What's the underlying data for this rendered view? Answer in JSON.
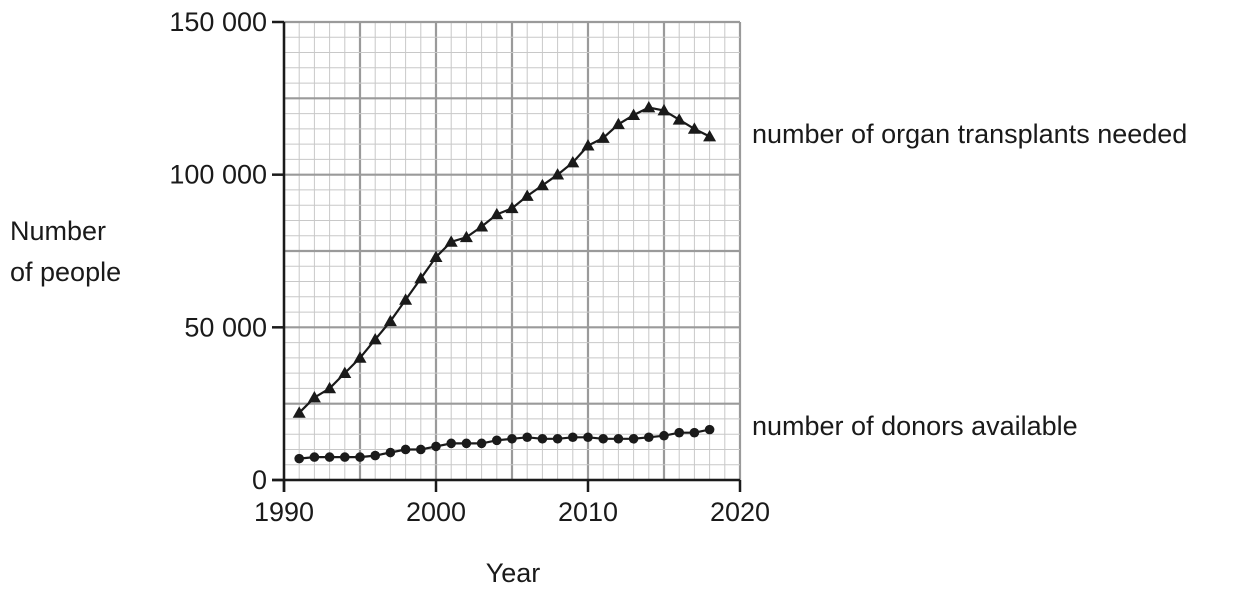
{
  "chart_data": {
    "type": "line",
    "title": "",
    "xlabel": "Year",
    "ylabel": [
      "Number",
      "of people"
    ],
    "xlim": [
      1990,
      2020
    ],
    "ylim": [
      0,
      150000
    ],
    "x_ticks": [
      1990,
      2000,
      2010,
      2020
    ],
    "x_tick_labels": [
      "1990",
      "2000",
      "2010",
      "2020"
    ],
    "y_ticks": [
      0,
      50000,
      100000,
      150000
    ],
    "y_tick_labels": [
      "0",
      "50 000",
      "100 000",
      "150 000"
    ],
    "grid": true,
    "x": [
      1991,
      1992,
      1993,
      1994,
      1995,
      1996,
      1997,
      1998,
      1999,
      2000,
      2001,
      2002,
      2003,
      2004,
      2005,
      2006,
      2007,
      2008,
      2009,
      2010,
      2011,
      2012,
      2013,
      2014,
      2015,
      2016,
      2017,
      2018
    ],
    "series": [
      {
        "name": "number of organ transplants needed",
        "marker": "triangle",
        "values": [
          22000,
          27000,
          30000,
          35000,
          40000,
          46000,
          52000,
          59000,
          66000,
          73000,
          78000,
          79500,
          83000,
          87000,
          89000,
          93000,
          96500,
          100000,
          104000,
          109500,
          112000,
          116500,
          119500,
          122000,
          121000,
          118000,
          115000,
          112500
        ]
      },
      {
        "name": "number of donors available",
        "marker": "circle",
        "values": [
          7000,
          7500,
          7500,
          7500,
          7500,
          8000,
          9000,
          10000,
          10000,
          11000,
          12000,
          12000,
          12000,
          13000,
          13500,
          14000,
          13500,
          13500,
          14000,
          14000,
          13500,
          13500,
          13500,
          14000,
          14500,
          15500,
          15500,
          16500
        ]
      }
    ],
    "line_color": "#1a1a1a",
    "grid_minor_color": "#c8c8c8",
    "grid_major_color": "#9a9a9a"
  }
}
